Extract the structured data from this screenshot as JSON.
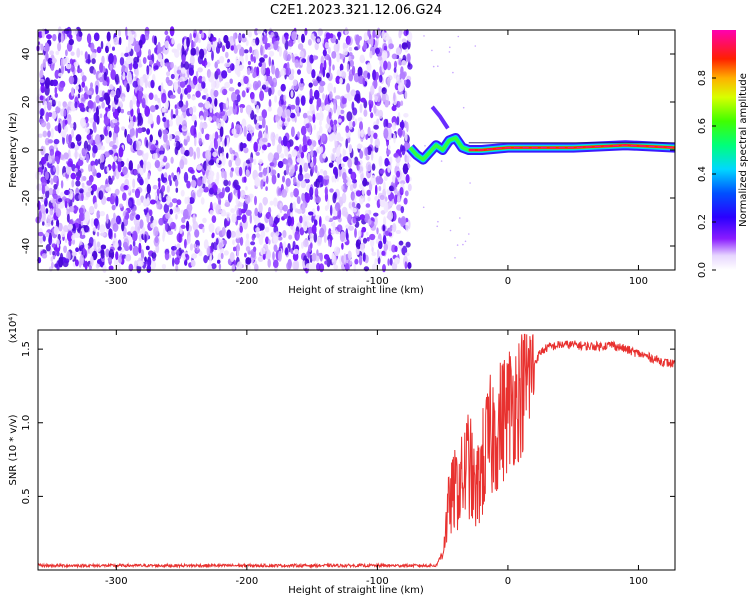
{
  "figure_title": "C2E1.2023.321.12.06.G24",
  "colorbar": {
    "label": "Normalized spectral amplitude",
    "range": [
      0,
      1
    ],
    "ticks": [
      "0.0",
      "0.2",
      "0.4",
      "0.6",
      "0.8"
    ],
    "tick_values": [
      0,
      0.2,
      0.4,
      0.6,
      0.8
    ]
  },
  "chart_data": [
    {
      "type": "heatmap",
      "title": "",
      "xlabel": "Height of straight line (km)",
      "ylabel": "Frequency (Hz)",
      "xlim": [
        -360,
        128
      ],
      "ylim": [
        -50,
        50
      ],
      "x_ticks": [
        -300,
        -200,
        -100,
        0,
        100
      ],
      "x_tick_labels": [
        "-300",
        "-200",
        "-100",
        "0",
        "100"
      ],
      "y_ticks": [
        -40,
        -20,
        0,
        20,
        40
      ],
      "y_tick_labels": [
        "-40",
        "-20",
        "0",
        "20",
        "40"
      ],
      "regions": [
        {
          "x_range": [
            -360,
            -75
          ],
          "freq_range": [
            -50,
            50
          ],
          "amplitude": "low (0.0-0.2)",
          "pattern": "broadband noise"
        },
        {
          "x_range": [
            -75,
            128
          ],
          "center_freq": 1,
          "amplitude": "high (0.7-1.0)",
          "pattern": "narrow tone"
        }
      ],
      "tone_track": [
        {
          "x": -75,
          "f": 1
        },
        {
          "x": -70,
          "f": -2
        },
        {
          "x": -65,
          "f": -4
        },
        {
          "x": -60,
          "f": -1
        },
        {
          "x": -55,
          "f": 2
        },
        {
          "x": -50,
          "f": 0
        },
        {
          "x": -45,
          "f": 4
        },
        {
          "x": -40,
          "f": 5
        },
        {
          "x": -35,
          "f": 1
        },
        {
          "x": -30,
          "f": 0
        },
        {
          "x": -20,
          "f": 0
        },
        {
          "x": 0,
          "f": 1
        },
        {
          "x": 50,
          "f": 1
        },
        {
          "x": 90,
          "f": 2
        },
        {
          "x": 128,
          "f": 1
        }
      ]
    },
    {
      "type": "line",
      "title": "",
      "xlabel": "Height of straight line (km)",
      "ylabel": "SNR (10 * v/v)",
      "y_multiplier": "(x10⁴)",
      "xlim": [
        -360,
        128
      ],
      "ylim": [
        0,
        1.63
      ],
      "x_ticks": [
        -300,
        -200,
        -100,
        0,
        100
      ],
      "x_tick_labels": [
        "-300",
        "-200",
        "-100",
        "0",
        "100"
      ],
      "y_ticks": [
        0.5,
        1.0,
        1.5
      ],
      "y_tick_labels": [
        "0.5",
        "1.0",
        "1.5"
      ],
      "color": "#e8312f",
      "series": [
        {
          "x": [
            -360,
            -300,
            -200,
            -100,
            -55,
            -50,
            -45,
            -40,
            -35,
            -30,
            -25,
            -20,
            -15,
            -10,
            -5,
            0,
            5,
            10,
            15,
            20,
            25,
            30,
            40,
            50,
            60,
            70,
            80,
            90,
            100,
            110,
            120,
            128
          ],
          "values": [
            0.03,
            0.03,
            0.03,
            0.03,
            0.03,
            0.12,
            0.45,
            0.55,
            0.6,
            0.75,
            0.5,
            0.7,
            0.85,
            0.95,
            1.0,
            1.1,
            1.15,
            1.2,
            1.3,
            1.4,
            1.48,
            1.51,
            1.53,
            1.53,
            1.52,
            1.52,
            1.53,
            1.5,
            1.47,
            1.44,
            1.41,
            1.4
          ]
        }
      ]
    }
  ]
}
